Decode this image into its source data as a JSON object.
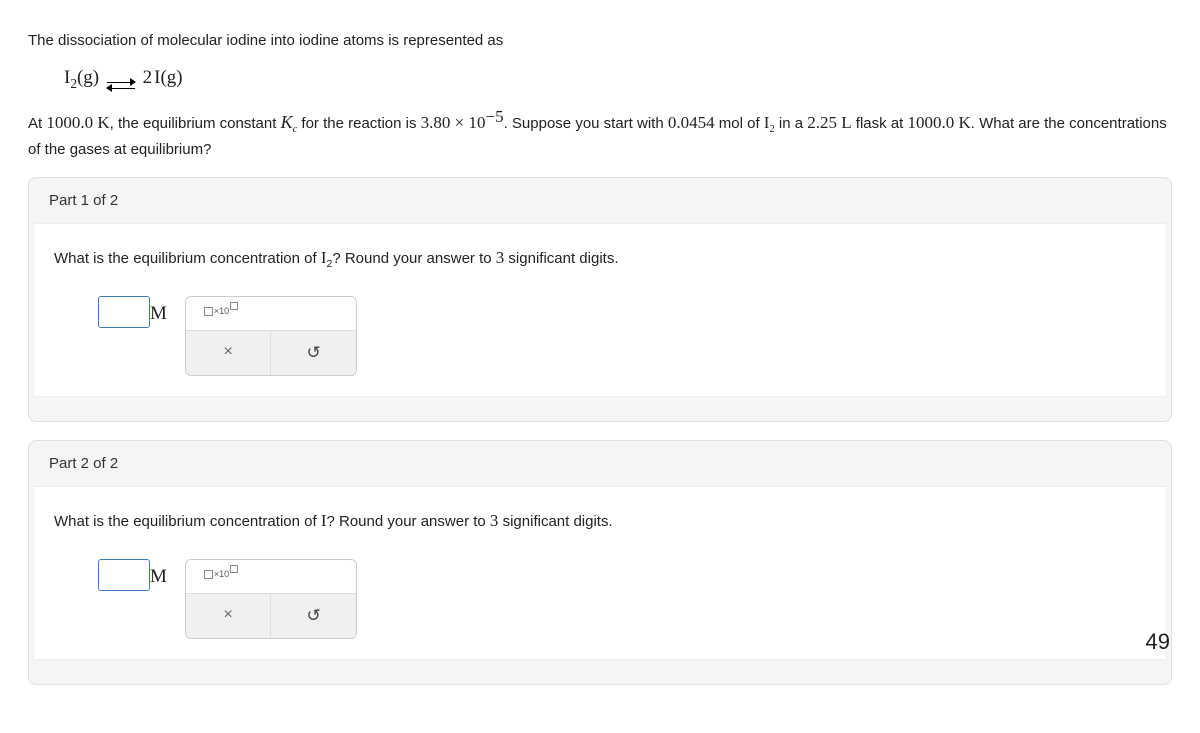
{
  "intro_text": "The dissociation of molecular iodine into iodine atoms is represented as",
  "equation": {
    "left_species": "I",
    "left_sub": "2",
    "left_phase": "(g)",
    "right_coef": "2",
    "right_species": "I",
    "right_phase": "(g)"
  },
  "context": {
    "at_prefix": "At ",
    "temp": "1000.0 K",
    "seg1": ", the equilibrium constant ",
    "k_sym": "K",
    "k_sub": "c",
    "seg2": " for the reaction is ",
    "k_val_base": "3.80 × 10",
    "k_val_exp": "−5",
    "seg3": ". Suppose you start with ",
    "mol": "0.0454",
    "seg4": " mol of ",
    "species": "I",
    "species_sub": "2",
    "seg5": " in a ",
    "vol": "2.25 L",
    "seg6": " flask at ",
    "temp2": "1000.0 K",
    "seg7": ". What are the concentrations of the gases at equilibrium?"
  },
  "parts": [
    {
      "header": "Part 1 of 2",
      "prompt_pre": "What is the equilibrium concentration of ",
      "prompt_species": "I",
      "prompt_sub": "2",
      "prompt_post": "? Round your answer to ",
      "sigfigs": "3",
      "prompt_end": " significant digits.",
      "unit": "M"
    },
    {
      "header": "Part 2 of 2",
      "prompt_pre": "What is the equilibrium concentration of ",
      "prompt_species": "I",
      "prompt_sub": "",
      "prompt_post": "? Round your answer to ",
      "sigfigs": "3",
      "prompt_end": " significant digits.",
      "unit": "M"
    }
  ],
  "palette": {
    "x10_label": "×10",
    "clear_icon": "×",
    "reset_icon": "↺"
  },
  "footer_number": "49",
  "colors": {
    "input_border": "#3a7bbf",
    "panel_bg": "#f5f5f5",
    "palette_border": "#ccc"
  }
}
